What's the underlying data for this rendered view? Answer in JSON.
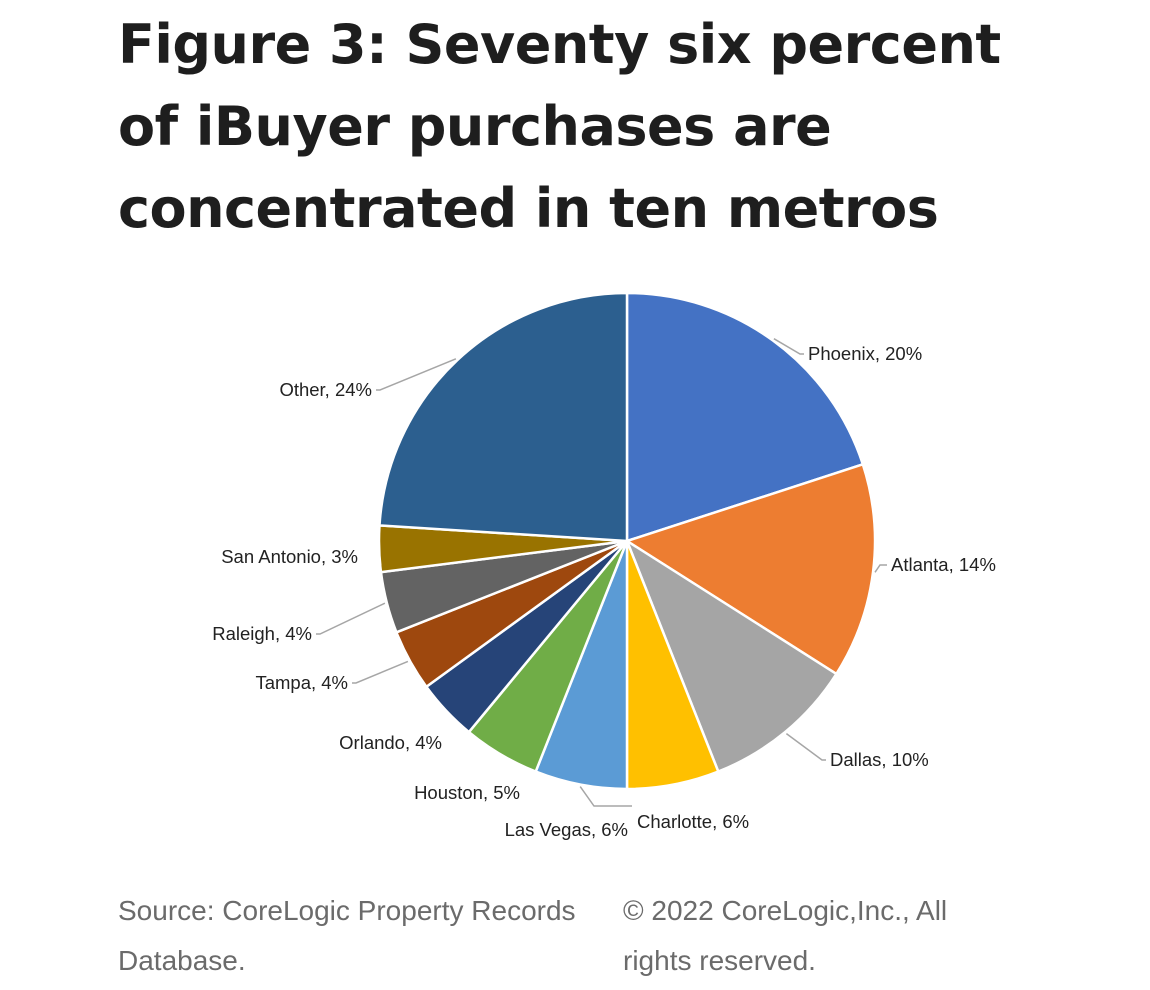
{
  "title": "Figure 3: Seventy six percent of iBuyer purchases are concentrated in ten metros",
  "source_text": "Source: CoreLogic Property Records Database.",
  "copyright_text": "© 2022 CoreLogic,Inc., All rights reserved.",
  "chart_data": {
    "type": "pie",
    "title": "",
    "slices": [
      {
        "label": "Phoenix, 20%",
        "name": "Phoenix",
        "value": 20,
        "color": "#4472C4"
      },
      {
        "label": "Atlanta, 14%",
        "name": "Atlanta",
        "value": 14,
        "color": "#ED7D31"
      },
      {
        "label": "Dallas, 10%",
        "name": "Dallas",
        "value": 10,
        "color": "#A5A5A5"
      },
      {
        "label": "Charlotte, 6%",
        "name": "Charlotte",
        "value": 6,
        "color": "#FFC000"
      },
      {
        "label": "Las Vegas, 6%",
        "name": "Las Vegas",
        "value": 6,
        "color": "#5B9BD5"
      },
      {
        "label": "Houston, 5%",
        "name": "Houston",
        "value": 5,
        "color": "#70AD47"
      },
      {
        "label": "Orlando, 4%",
        "name": "Orlando",
        "value": 4,
        "color": "#264478"
      },
      {
        "label": "Tampa, 4%",
        "name": "Tampa",
        "value": 4,
        "color": "#9E480E"
      },
      {
        "label": "Raleigh, 4%",
        "name": "Raleigh",
        "value": 4,
        "color": "#636363"
      },
      {
        "label": "San Antonio, 3%",
        "name": "San Antonio",
        "value": 3,
        "color": "#997300"
      },
      {
        "label": "Other, 24%",
        "name": "Other",
        "value": 24,
        "color": "#2C5F8F"
      }
    ],
    "start_angle": "12 o'clock",
    "direction": "clockwise",
    "legend": "none",
    "label_style": "outside with leader lines"
  }
}
